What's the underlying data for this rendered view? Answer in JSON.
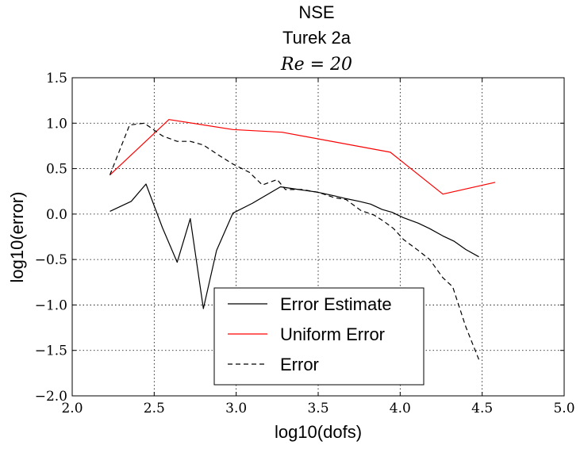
{
  "chart_data": {
    "type": "line",
    "title": "NSE",
    "subtitle": "Turek 2a",
    "subtitle2": "Re = 20",
    "xlabel": "log10(dofs)",
    "ylabel": "log10(error)",
    "xlim": [
      2.0,
      5.0
    ],
    "ylim": [
      -2.0,
      1.5
    ],
    "xticks": [
      "2.0",
      "2.5",
      "3.0",
      "3.5",
      "4.0",
      "4.5",
      "5.0"
    ],
    "yticks": [
      "1.5",
      "1.0",
      "0.5",
      "0.0",
      "−0.5",
      "−1.0",
      "−1.5",
      "−2.0"
    ],
    "grid": true,
    "legend_position": "lower-center",
    "series": [
      {
        "name": "Error Estimate",
        "color": "#000000",
        "style": "solid",
        "points": [
          [
            2.23,
            0.03
          ],
          [
            2.36,
            0.14
          ],
          [
            2.45,
            0.33
          ],
          [
            2.55,
            -0.15
          ],
          [
            2.64,
            -0.53
          ],
          [
            2.72,
            -0.05
          ],
          [
            2.8,
            -1.04
          ],
          [
            2.88,
            -0.4
          ],
          [
            2.98,
            0.01
          ],
          [
            3.1,
            0.12
          ],
          [
            3.27,
            0.3
          ],
          [
            3.38,
            0.27
          ],
          [
            3.5,
            0.24
          ],
          [
            3.6,
            0.2
          ],
          [
            3.67,
            0.17
          ],
          [
            3.75,
            0.14
          ],
          [
            3.82,
            0.11
          ],
          [
            3.89,
            0.05
          ],
          [
            3.95,
            0.02
          ],
          [
            4.02,
            -0.04
          ],
          [
            4.11,
            -0.1
          ],
          [
            4.18,
            -0.16
          ],
          [
            4.26,
            -0.24
          ],
          [
            4.33,
            -0.3
          ],
          [
            4.4,
            -0.39
          ],
          [
            4.48,
            -0.47
          ]
        ]
      },
      {
        "name": "Uniform Error",
        "color": "#ff0000",
        "style": "solid",
        "points": [
          [
            2.23,
            0.43
          ],
          [
            2.59,
            1.04
          ],
          [
            2.98,
            0.93
          ],
          [
            3.28,
            0.9
          ],
          [
            3.94,
            0.68
          ],
          [
            4.26,
            0.22
          ],
          [
            4.58,
            0.35
          ]
        ]
      },
      {
        "name": "Error",
        "color": "#000000",
        "style": "dashed",
        "points": [
          [
            2.23,
            0.43
          ],
          [
            2.35,
            0.98
          ],
          [
            2.44,
            1.0
          ],
          [
            2.55,
            0.86
          ],
          [
            2.64,
            0.8
          ],
          [
            2.72,
            0.8
          ],
          [
            2.8,
            0.76
          ],
          [
            2.9,
            0.64
          ],
          [
            2.98,
            0.55
          ],
          [
            3.08,
            0.46
          ],
          [
            3.16,
            0.32
          ],
          [
            3.25,
            0.38
          ],
          [
            3.3,
            0.27
          ],
          [
            3.4,
            0.27
          ],
          [
            3.5,
            0.24
          ],
          [
            3.6,
            0.18
          ],
          [
            3.67,
            0.16
          ],
          [
            3.76,
            0.04
          ],
          [
            3.84,
            -0.01
          ],
          [
            3.9,
            -0.08
          ],
          [
            3.96,
            -0.16
          ],
          [
            4.02,
            -0.28
          ],
          [
            4.11,
            -0.4
          ],
          [
            4.18,
            -0.5
          ],
          [
            4.26,
            -0.7
          ],
          [
            4.32,
            -0.8
          ],
          [
            4.4,
            -1.24
          ],
          [
            4.48,
            -1.6
          ]
        ]
      }
    ]
  }
}
